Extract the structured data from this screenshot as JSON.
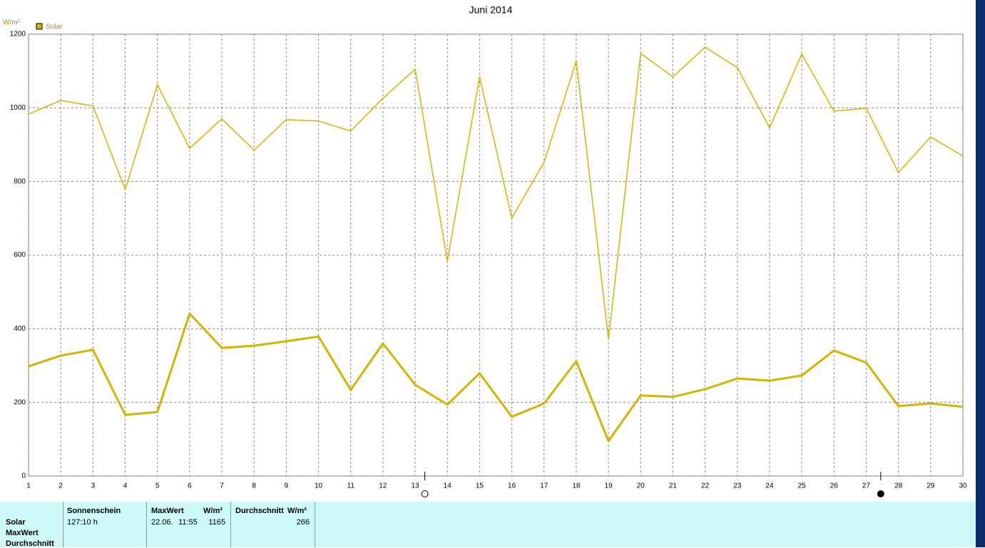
{
  "chart_data": {
    "type": "line",
    "title": "Juni 2014",
    "y_unit": "W/m²",
    "x": [
      1,
      2,
      3,
      4,
      5,
      6,
      7,
      8,
      9,
      10,
      11,
      12,
      13,
      14,
      15,
      16,
      17,
      18,
      19,
      20,
      21,
      22,
      23,
      24,
      25,
      26,
      27,
      28,
      29,
      30
    ],
    "xlim": [
      1,
      30
    ],
    "xticks": [
      1,
      2,
      3,
      4,
      5,
      6,
      7,
      8,
      9,
      10,
      11,
      12,
      13,
      14,
      15,
      16,
      17,
      18,
      19,
      20,
      21,
      22,
      23,
      24,
      25,
      26,
      27,
      28,
      29,
      30
    ],
    "ylim": [
      0,
      1200
    ],
    "yticks": [
      0,
      200,
      400,
      600,
      800,
      1000,
      1200
    ],
    "grid": true,
    "series": [
      {
        "name": "Solar",
        "color": "#d4b400",
        "width": 1.5,
        "values": [
          983,
          1020,
          1005,
          778,
          1063,
          890,
          970,
          885,
          968,
          964,
          937,
          1026,
          1105,
          584,
          1084,
          701,
          852,
          1127,
          372,
          1148,
          1084,
          1165,
          1109,
          946,
          1146,
          991,
          999,
          824,
          921,
          869
        ]
      },
      {
        "color": "#d4b400",
        "width": 3,
        "values": [
          298,
          327,
          343,
          166,
          174,
          441,
          348,
          354,
          366,
          379,
          234,
          360,
          248,
          194,
          279,
          161,
          197,
          312,
          95,
          219,
          215,
          236,
          265,
          259,
          273,
          341,
          308,
          190,
          197,
          188
        ]
      }
    ],
    "moon_phases": [
      {
        "x": 13.3,
        "kind": "full"
      },
      {
        "x": 27.45,
        "kind": "new"
      }
    ]
  },
  "table": {
    "row_labels": [
      "Solar",
      "MaxWert",
      "Durchschnitt"
    ],
    "headers": [
      "Sonnenschein",
      "MaxWert",
      "W/m²",
      "Durchschnitt",
      "W/m²"
    ],
    "cells": [
      "127:10 h",
      "22.06.",
      "11:55",
      "1165",
      "266"
    ]
  }
}
